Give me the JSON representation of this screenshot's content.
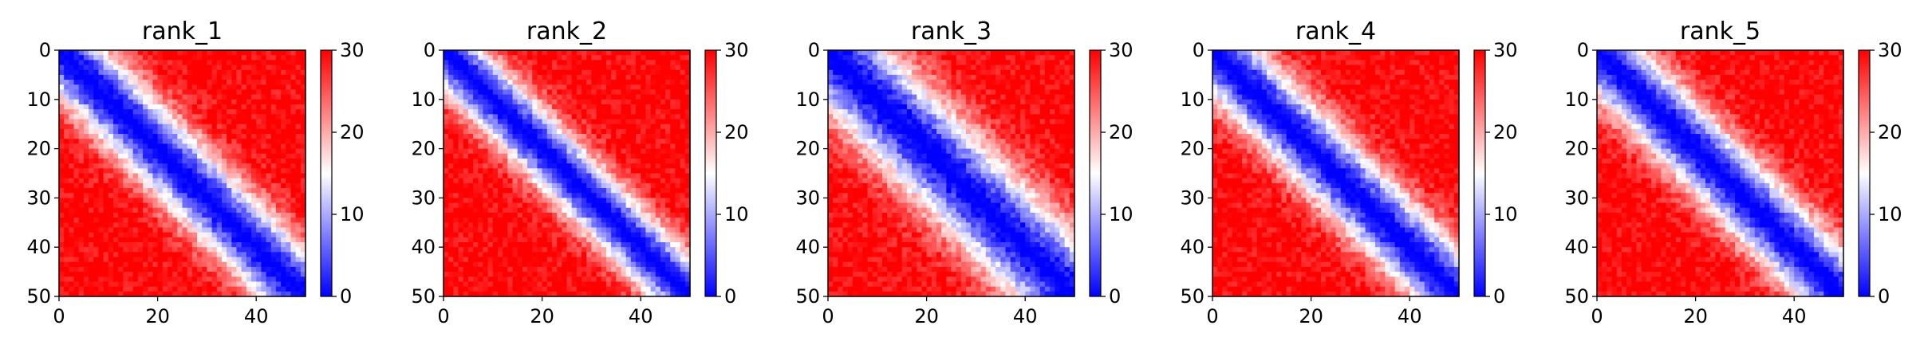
{
  "chart_data": [
    {
      "type": "heatmap",
      "title": "rank_1",
      "x_ticks": [
        0,
        20,
        40
      ],
      "y_ticks": [
        0,
        10,
        20,
        30,
        40,
        50
      ],
      "xlim": [
        0,
        50
      ],
      "ylim": [
        50,
        0
      ],
      "grid_size": 50,
      "colormap": "bwr",
      "value_range": [
        0,
        30
      ],
      "colorbar_ticks": [
        0,
        10,
        20,
        30
      ],
      "diagonal_band_width": 7,
      "off_diagonal_max": 30
    },
    {
      "type": "heatmap",
      "title": "rank_2",
      "x_ticks": [
        0,
        20,
        40
      ],
      "y_ticks": [
        0,
        10,
        20,
        30,
        40,
        50
      ],
      "xlim": [
        0,
        50
      ],
      "ylim": [
        50,
        0
      ],
      "grid_size": 50,
      "colormap": "bwr",
      "value_range": [
        0,
        30
      ],
      "colorbar_ticks": [
        0,
        10,
        20,
        30
      ],
      "diagonal_band_width": 6,
      "off_diagonal_max": 30
    },
    {
      "type": "heatmap",
      "title": "rank_3",
      "x_ticks": [
        0,
        20,
        40
      ],
      "y_ticks": [
        0,
        10,
        20,
        30,
        40,
        50
      ],
      "xlim": [
        0,
        50
      ],
      "ylim": [
        50,
        0
      ],
      "grid_size": 50,
      "colormap": "bwr",
      "value_range": [
        0,
        30
      ],
      "colorbar_ticks": [
        0,
        10,
        20,
        30
      ],
      "diagonal_band_width": 9,
      "off_diagonal_max": 30
    },
    {
      "type": "heatmap",
      "title": "rank_4",
      "x_ticks": [
        0,
        20,
        40
      ],
      "y_ticks": [
        0,
        10,
        20,
        30,
        40,
        50
      ],
      "xlim": [
        0,
        50
      ],
      "ylim": [
        50,
        0
      ],
      "grid_size": 50,
      "colormap": "bwr",
      "value_range": [
        0,
        30
      ],
      "colorbar_ticks": [
        0,
        10,
        20,
        30
      ],
      "diagonal_band_width": 7,
      "off_diagonal_max": 30
    },
    {
      "type": "heatmap",
      "title": "rank_5",
      "x_ticks": [
        0,
        20,
        40
      ],
      "y_ticks": [
        0,
        10,
        20,
        30,
        40,
        50
      ],
      "xlim": [
        0,
        50
      ],
      "ylim": [
        50,
        0
      ],
      "grid_size": 50,
      "colormap": "bwr",
      "value_range": [
        0,
        30
      ],
      "colorbar_ticks": [
        0,
        10,
        20,
        30
      ],
      "diagonal_band_width": 7,
      "off_diagonal_max": 30
    }
  ]
}
